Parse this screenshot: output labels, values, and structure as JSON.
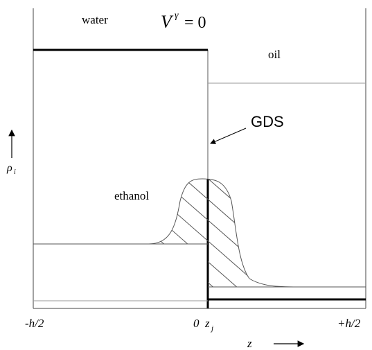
{
  "labels": {
    "water": "water",
    "oil": "oil",
    "ethanol": "ethanol",
    "gds": "GDS",
    "v_symbol": "V",
    "v_superscript": "γ",
    "v_equals": "= 0",
    "rho": "ρ",
    "rho_subscript": "i",
    "tick_left": "-h/2",
    "tick_zero": "0",
    "tick_zj": "z",
    "tick_zj_subscript": "j",
    "tick_right": "+h/2",
    "z_axis": "z"
  }
}
